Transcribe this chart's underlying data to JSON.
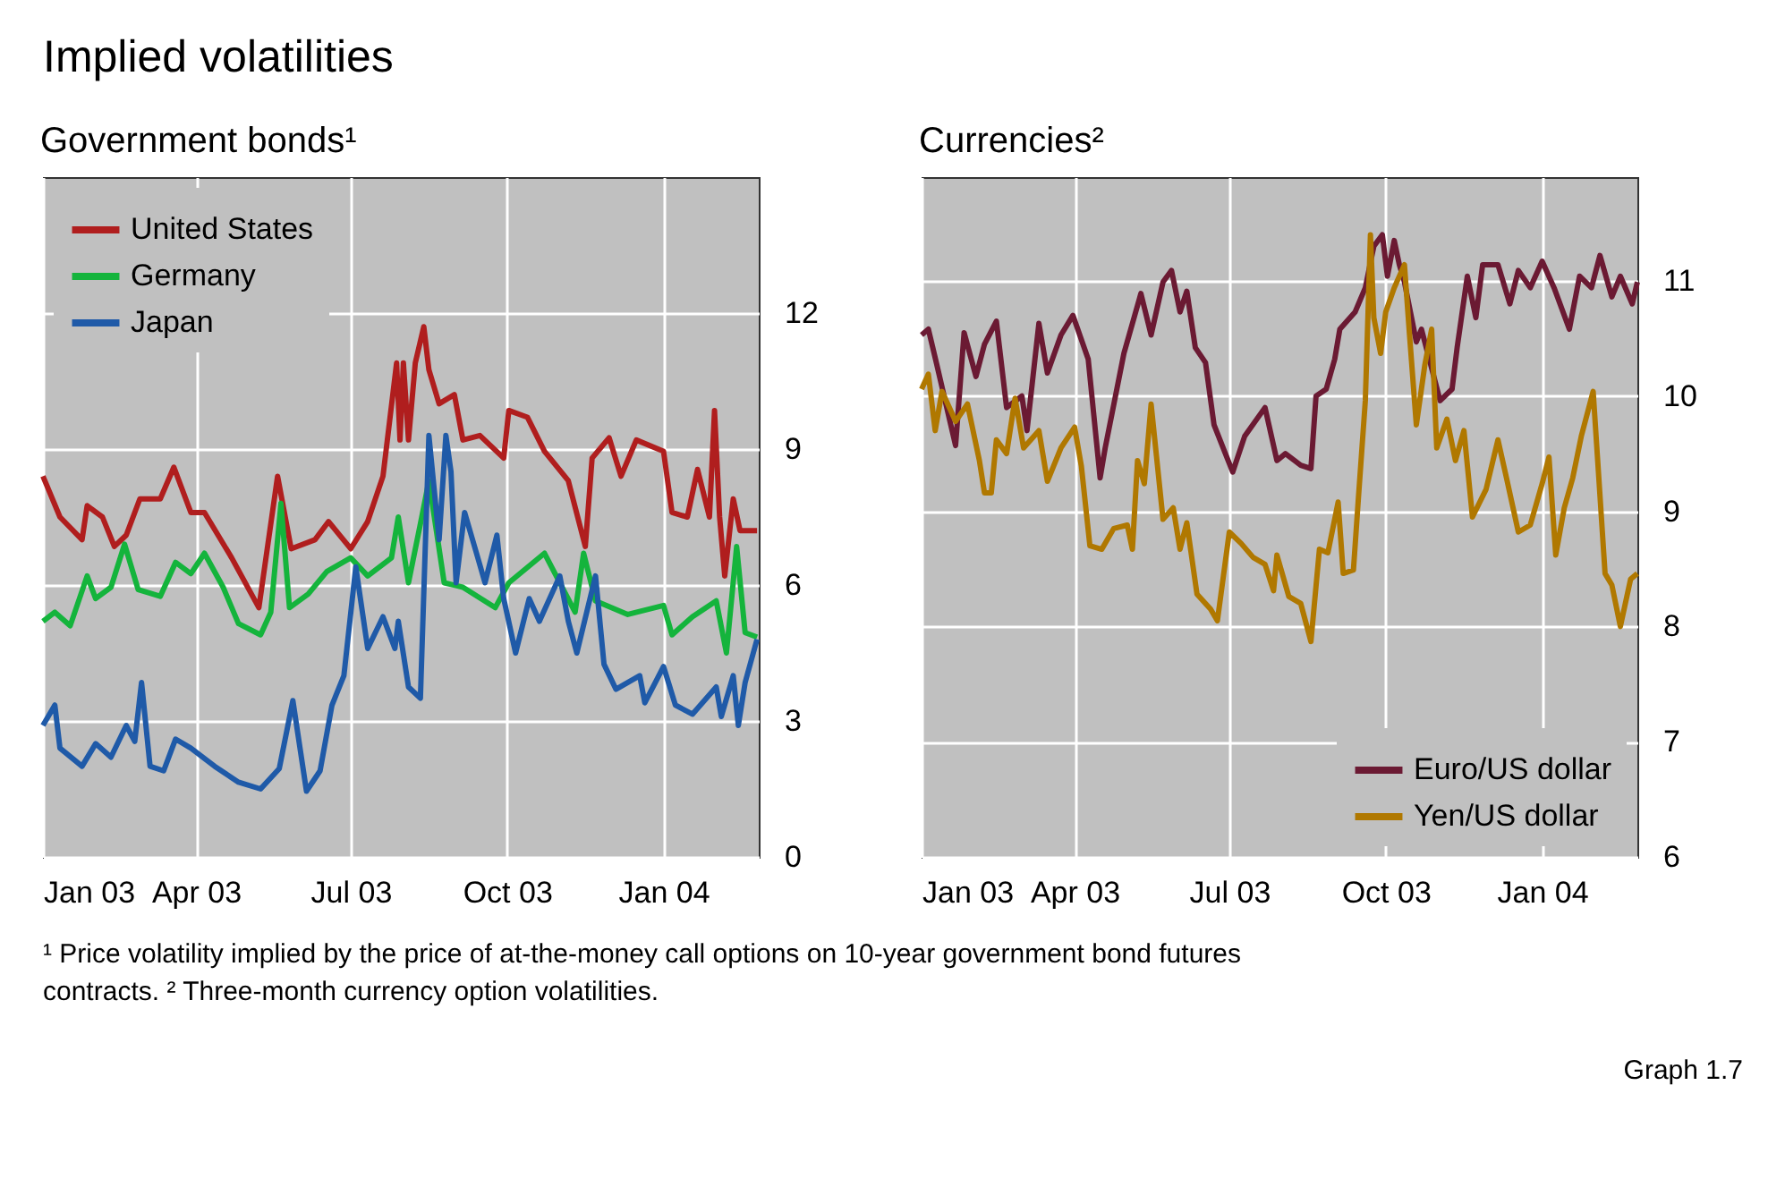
{
  "chart_data": [
    {
      "type": "line",
      "title": "Government bonds¹",
      "annotations": [
        "Implied volatilities"
      ],
      "xlim": [
        "2003-01-01",
        "2004-02-26"
      ],
      "xticks": [
        {
          "value": "2003-01-01",
          "label": "Jan 03"
        },
        {
          "value": "2003-04-01",
          "label": "Apr 03"
        },
        {
          "value": "2003-07-01",
          "label": "Jul 03"
        },
        {
          "value": "2003-10-01",
          "label": "Oct 03"
        },
        {
          "value": "2004-01-01",
          "label": "Jan 04"
        }
      ],
      "ylim": [
        0,
        15
      ],
      "yticks": [
        0,
        3,
        6,
        9,
        12
      ],
      "grid": true,
      "legend": "top left",
      "line_style": "solid",
      "marker": "none",
      "series": [
        {
          "name": "United States",
          "color": "#b01e1e",
          "x": [
            "2003-01-01",
            "2003-01-11",
            "2003-01-24",
            "2003-01-27",
            "2003-02-05",
            "2003-02-12",
            "2003-02-19",
            "2003-02-27",
            "2003-03-11",
            "2003-03-19",
            "2003-03-29",
            "2003-04-06",
            "2003-04-22",
            "2003-05-08",
            "2003-05-19",
            "2003-05-27",
            "2003-06-10",
            "2003-06-18",
            "2003-07-01",
            "2003-07-11",
            "2003-07-20",
            "2003-07-28",
            "2003-07-30",
            "2003-08-01",
            "2003-08-04",
            "2003-08-08",
            "2003-08-13",
            "2003-08-16",
            "2003-08-22",
            "2003-08-31",
            "2003-09-05",
            "2003-09-15",
            "2003-09-29",
            "2003-10-02",
            "2003-10-13",
            "2003-10-23",
            "2003-11-06",
            "2003-11-16",
            "2003-11-20",
            "2003-11-30",
            "2003-12-07",
            "2003-12-16",
            "2004-01-01",
            "2004-01-06",
            "2004-01-15",
            "2004-01-21",
            "2004-01-28",
            "2004-01-31",
            "2004-02-03",
            "2004-02-06",
            "2004-02-11",
            "2004-02-15",
            "2004-02-25"
          ],
          "values": [
            8.4,
            7.5,
            7.0,
            7.75,
            7.5,
            6.85,
            7.1,
            7.9,
            7.9,
            8.6,
            7.6,
            7.6,
            6.6,
            5.5,
            8.4,
            6.8,
            7.0,
            7.4,
            6.8,
            7.4,
            8.4,
            10.9,
            9.2,
            10.9,
            9.2,
            10.9,
            11.7,
            10.75,
            10.0,
            10.2,
            9.2,
            9.3,
            8.8,
            9.85,
            9.7,
            8.95,
            8.3,
            6.85,
            8.8,
            9.25,
            8.4,
            9.2,
            8.95,
            7.6,
            7.5,
            8.55,
            7.5,
            9.85,
            7.5,
            6.2,
            7.9,
            7.2,
            7.2
          ]
        },
        {
          "name": "Germany",
          "color": "#14b43c",
          "x": [
            "2003-01-01",
            "2003-01-08",
            "2003-01-17",
            "2003-01-27",
            "2003-02-01",
            "2003-02-10",
            "2003-02-18",
            "2003-02-26",
            "2003-03-11",
            "2003-03-20",
            "2003-03-29",
            "2003-04-06",
            "2003-04-17",
            "2003-04-26",
            "2003-05-09",
            "2003-05-15",
            "2003-05-21",
            "2003-05-26",
            "2003-06-06",
            "2003-06-17",
            "2003-07-01",
            "2003-07-11",
            "2003-07-25",
            "2003-07-29",
            "2003-08-04",
            "2003-08-11",
            "2003-08-16",
            "2003-08-25",
            "2003-09-05",
            "2003-09-24",
            "2003-10-02",
            "2003-10-23",
            "2003-11-10",
            "2003-11-15",
            "2003-11-22",
            "2003-12-11",
            "2004-01-01",
            "2004-01-06",
            "2004-01-18",
            "2004-02-01",
            "2004-02-07",
            "2004-02-13",
            "2004-02-18",
            "2004-02-25"
          ],
          "values": [
            5.2,
            5.4,
            5.1,
            6.2,
            5.7,
            5.95,
            6.9,
            5.9,
            5.75,
            6.5,
            6.25,
            6.7,
            5.95,
            5.15,
            4.9,
            5.4,
            7.8,
            5.5,
            5.8,
            6.3,
            6.6,
            6.2,
            6.6,
            7.5,
            6.05,
            7.35,
            8.3,
            6.05,
            5.95,
            5.5,
            6.05,
            6.7,
            5.4,
            6.7,
            5.65,
            5.35,
            5.55,
            4.9,
            5.3,
            5.65,
            4.5,
            6.85,
            4.95,
            4.85
          ]
        },
        {
          "name": "Japan",
          "color": "#1f5aa8",
          "x": [
            "2003-01-01",
            "2003-01-08",
            "2003-01-11",
            "2003-01-24",
            "2003-02-01",
            "2003-02-10",
            "2003-02-19",
            "2003-02-24",
            "2003-02-28",
            "2003-03-05",
            "2003-03-13",
            "2003-03-20",
            "2003-03-29",
            "2003-04-12",
            "2003-04-26",
            "2003-05-09",
            "2003-05-20",
            "2003-05-28",
            "2003-06-05",
            "2003-06-13",
            "2003-06-20",
            "2003-06-27",
            "2003-07-04",
            "2003-07-11",
            "2003-07-20",
            "2003-07-27",
            "2003-07-29",
            "2003-08-04",
            "2003-08-11",
            "2003-08-16",
            "2003-08-22",
            "2003-08-26",
            "2003-08-29",
            "2003-09-01",
            "2003-09-06",
            "2003-09-13",
            "2003-09-18",
            "2003-09-25",
            "2003-09-29",
            "2003-10-06",
            "2003-10-14",
            "2003-10-20",
            "2003-11-01",
            "2003-11-06",
            "2003-11-11",
            "2003-11-22",
            "2003-11-27",
            "2003-12-04",
            "2003-12-18",
            "2003-12-21",
            "2004-01-01",
            "2004-01-08",
            "2004-01-18",
            "2004-02-01",
            "2004-02-04",
            "2004-02-11",
            "2004-02-14",
            "2004-02-18",
            "2004-02-25"
          ],
          "values": [
            2.9,
            3.35,
            2.4,
            2.0,
            2.5,
            2.2,
            2.9,
            2.55,
            3.85,
            2.0,
            1.9,
            2.6,
            2.4,
            2.0,
            1.65,
            1.5,
            1.95,
            3.45,
            1.45,
            1.9,
            3.35,
            4.0,
            6.4,
            4.6,
            5.3,
            4.6,
            5.2,
            3.75,
            3.5,
            9.3,
            7.0,
            9.3,
            8.5,
            6.05,
            7.6,
            6.7,
            6.05,
            7.1,
            5.7,
            4.5,
            5.7,
            5.2,
            6.2,
            5.2,
            4.5,
            6.2,
            4.25,
            3.7,
            4.0,
            3.4,
            4.2,
            3.35,
            3.15,
            3.75,
            3.1,
            4.0,
            2.9,
            3.85,
            4.8
          ]
        }
      ]
    },
    {
      "type": "line",
      "title": "Currencies²",
      "annotations": [
        "¹ Price volatility implied by the price of at-the-money call options on 10-year government bond futures contracts.",
        "² Three-month currency option volatilities.",
        "Graph 1.7"
      ],
      "xlim": [
        "2003-01-01",
        "2004-02-26"
      ],
      "xticks": [
        {
          "value": "2003-01-01",
          "label": "Jan 03"
        },
        {
          "value": "2003-04-01",
          "label": "Apr 03"
        },
        {
          "value": "2003-07-01",
          "label": "Jul 03"
        },
        {
          "value": "2003-10-01",
          "label": "Oct 03"
        },
        {
          "value": "2004-01-01",
          "label": "Jan 04"
        }
      ],
      "ylim": [
        6,
        11.9
      ],
      "yticks": [
        6,
        7,
        8,
        9,
        10,
        11
      ],
      "grid": true,
      "legend": "bottom right",
      "line_style": "solid",
      "marker": "none",
      "series": [
        {
          "name": "Euro/US dollar",
          "color": "#6b1a33",
          "x": [
            "2003-01-01",
            "2003-01-05",
            "2003-01-10",
            "2003-01-21",
            "2003-01-26",
            "2003-02-02",
            "2003-02-07",
            "2003-02-14",
            "2003-02-20",
            "2003-03-01",
            "2003-03-04",
            "2003-03-11",
            "2003-03-16",
            "2003-03-24",
            "2003-03-31",
            "2003-04-09",
            "2003-04-16",
            "2003-04-19",
            "2003-04-30",
            "2003-05-10",
            "2003-05-16",
            "2003-05-23",
            "2003-05-28",
            "2003-06-02",
            "2003-06-06",
            "2003-06-11",
            "2003-06-17",
            "2003-06-22",
            "2003-07-03",
            "2003-07-10",
            "2003-07-22",
            "2003-07-29",
            "2003-08-03",
            "2003-08-12",
            "2003-08-18",
            "2003-08-21",
            "2003-08-27",
            "2003-09-01",
            "2003-09-04",
            "2003-09-13",
            "2003-09-19",
            "2003-09-24",
            "2003-09-29",
            "2003-10-02",
            "2003-10-06",
            "2003-10-09",
            "2003-10-12",
            "2003-10-19",
            "2003-10-22",
            "2003-11-02",
            "2003-11-09",
            "2003-11-12",
            "2003-11-18",
            "2003-11-23",
            "2003-11-27",
            "2003-12-06",
            "2003-12-13",
            "2003-12-18",
            "2003-12-25",
            "2004-01-01",
            "2004-01-08",
            "2004-01-17",
            "2004-01-23",
            "2004-01-30",
            "2004-02-04",
            "2004-02-11",
            "2004-02-16",
            "2004-02-23",
            "2004-02-26"
          ],
          "values": [
            10.53,
            10.58,
            10.27,
            9.57,
            10.55,
            10.17,
            10.45,
            10.65,
            9.9,
            10.0,
            9.7,
            10.63,
            10.2,
            10.53,
            10.7,
            10.32,
            9.29,
            9.55,
            10.37,
            10.89,
            10.53,
            10.99,
            11.09,
            10.73,
            10.91,
            10.42,
            10.29,
            9.75,
            9.34,
            9.65,
            9.9,
            9.44,
            9.5,
            9.4,
            9.37,
            10.0,
            10.06,
            10.32,
            10.58,
            10.73,
            10.94,
            11.3,
            11.4,
            11.04,
            11.35,
            11.14,
            10.99,
            10.47,
            10.58,
            9.96,
            10.06,
            10.42,
            11.04,
            10.68,
            11.14,
            11.14,
            10.8,
            11.09,
            10.94,
            11.17,
            10.94,
            10.58,
            11.04,
            10.94,
            11.22,
            10.86,
            11.04,
            10.8,
            10.99
          ]
        },
        {
          "name": "Yen/US dollar",
          "color": "#b07800",
          "x": [
            "2003-01-01",
            "2003-01-05",
            "2003-01-09",
            "2003-01-13",
            "2003-01-21",
            "2003-01-28",
            "2003-02-04",
            "2003-02-07",
            "2003-02-11",
            "2003-02-14",
            "2003-02-20",
            "2003-02-25",
            "2003-03-02",
            "2003-03-11",
            "2003-03-16",
            "2003-03-24",
            "2003-04-01",
            "2003-04-05",
            "2003-04-10",
            "2003-04-17",
            "2003-04-24",
            "2003-05-02",
            "2003-05-05",
            "2003-05-08",
            "2003-05-12",
            "2003-05-16",
            "2003-05-23",
            "2003-05-29",
            "2003-06-02",
            "2003-06-06",
            "2003-06-12",
            "2003-06-20",
            "2003-06-24",
            "2003-07-01",
            "2003-07-08",
            "2003-07-15",
            "2003-07-22",
            "2003-07-27",
            "2003-07-29",
            "2003-08-05",
            "2003-08-12",
            "2003-08-18",
            "2003-08-23",
            "2003-08-28",
            "2003-09-03",
            "2003-09-06",
            "2003-09-12",
            "2003-09-15",
            "2003-09-19",
            "2003-09-22",
            "2003-09-24",
            "2003-09-28",
            "2003-10-01",
            "2003-10-06",
            "2003-10-12",
            "2003-10-15",
            "2003-10-19",
            "2003-10-24",
            "2003-10-28",
            "2003-10-31",
            "2003-11-06",
            "2003-11-11",
            "2003-11-16",
            "2003-11-21",
            "2003-11-29",
            "2003-12-06",
            "2003-12-11",
            "2003-12-18",
            "2003-12-25",
            "2004-01-01",
            "2004-01-05",
            "2004-01-09",
            "2004-01-14",
            "2004-01-19",
            "2004-01-24",
            "2004-01-31",
            "2004-02-07",
            "2004-02-11",
            "2004-02-16",
            "2004-02-22",
            "2004-02-26"
          ],
          "values": [
            10.06,
            10.19,
            9.7,
            10.04,
            9.78,
            9.93,
            9.44,
            9.16,
            9.16,
            9.62,
            9.5,
            9.98,
            9.55,
            9.7,
            9.26,
            9.55,
            9.73,
            9.39,
            8.7,
            8.67,
            8.85,
            8.88,
            8.67,
            9.44,
            9.24,
            9.93,
            8.93,
            9.03,
            8.67,
            8.9,
            8.28,
            8.15,
            8.05,
            8.82,
            8.72,
            8.6,
            8.54,
            8.31,
            8.62,
            8.26,
            8.2,
            7.87,
            8.67,
            8.64,
            9.08,
            8.46,
            8.49,
            9.13,
            9.96,
            11.4,
            10.68,
            10.37,
            10.73,
            10.94,
            11.14,
            10.53,
            9.75,
            10.27,
            10.58,
            9.55,
            9.8,
            9.44,
            9.7,
            8.95,
            9.19,
            9.62,
            9.29,
            8.82,
            8.88,
            9.24,
            9.47,
            8.62,
            9.03,
            9.29,
            9.65,
            10.04,
            8.46,
            8.36,
            8.0,
            8.41,
            8.46
          ]
        }
      ]
    }
  ]
}
